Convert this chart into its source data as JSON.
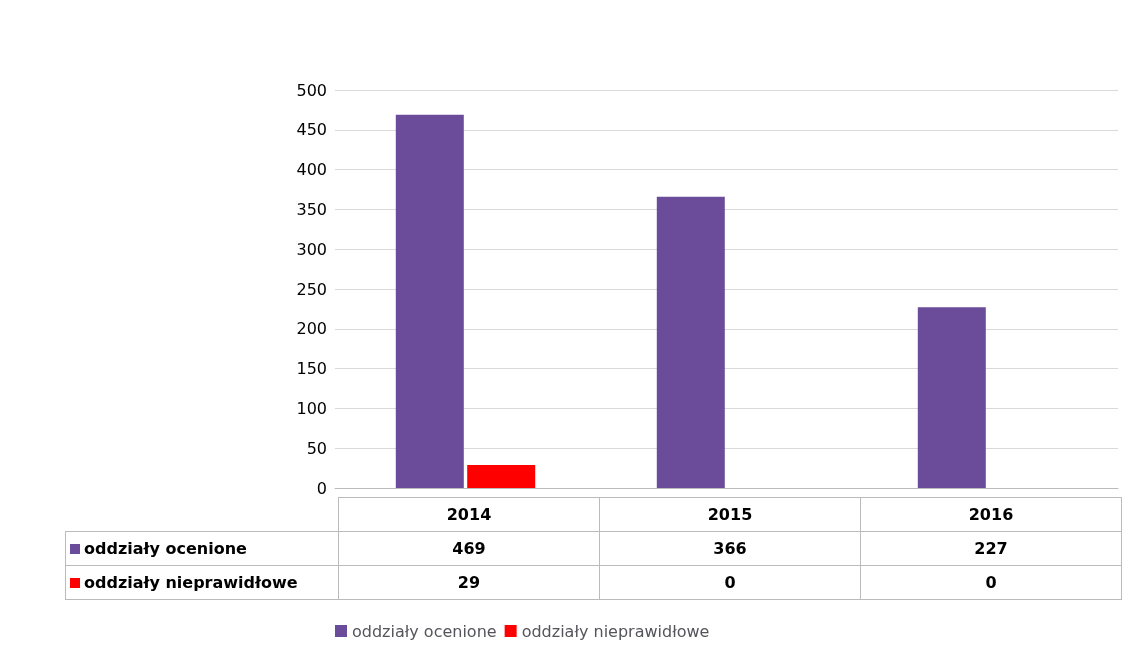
{
  "chart_data": {
    "type": "bar",
    "categories": [
      "2014",
      "2015",
      "2016"
    ],
    "series": [
      {
        "name": "oddziały ocenione",
        "color": "#6b4c9a",
        "values": [
          469,
          366,
          227
        ]
      },
      {
        "name": "oddziały nieprawidłowe",
        "color": "#ff0000",
        "values": [
          29,
          0,
          0
        ]
      }
    ],
    "ylim": [
      0,
      500
    ],
    "yticks": [
      0,
      50,
      100,
      150,
      200,
      250,
      300,
      350,
      400,
      450,
      500
    ],
    "grid": "y",
    "legend": "bottom",
    "data_labels": true
  }
}
